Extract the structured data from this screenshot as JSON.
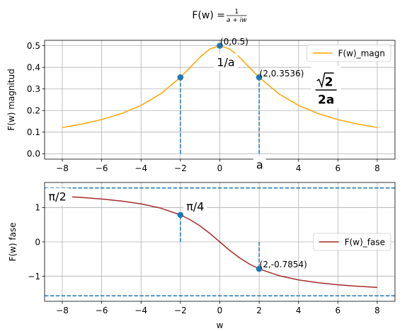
{
  "figure": {
    "title_prefix": "F(w) = ",
    "title_num": "1",
    "title_den": "a + iw"
  },
  "chart_data": [
    {
      "type": "line",
      "ylabel": "F(w) magnitud",
      "xlim": [
        -8.9,
        8.9
      ],
      "ylim": [
        -0.025,
        0.525
      ],
      "xticks": [
        -8,
        -6,
        -4,
        -2,
        0,
        2,
        4,
        6,
        8
      ],
      "xtick_labels": [
        "−8",
        "−6",
        "−4",
        "−2",
        "0",
        "2",
        "4",
        "6",
        "8"
      ],
      "yticks": [
        0.0,
        0.1,
        0.2,
        0.3,
        0.4,
        0.5
      ],
      "ytick_labels": [
        "0.0",
        "0.1",
        "0.2",
        "0.3",
        "0.4",
        "0.5"
      ],
      "grid": true,
      "legend": {
        "position": "top-right",
        "entries": [
          "F(w)_magn"
        ]
      },
      "series": [
        {
          "name": "F(w)_magn",
          "color": "#ffa500",
          "x": [
            -8,
            -7,
            -6,
            -5,
            -4,
            -3,
            -2,
            -1.5,
            -1,
            -0.5,
            0,
            0.5,
            1,
            1.5,
            2,
            3,
            4,
            5,
            6,
            7,
            8
          ],
          "y": [
            0.1213,
            0.1374,
            0.1581,
            0.1857,
            0.2236,
            0.2774,
            0.3536,
            0.4,
            0.4472,
            0.4851,
            0.5,
            0.4851,
            0.4472,
            0.4,
            0.3536,
            0.2774,
            0.2236,
            0.1857,
            0.1581,
            0.1374,
            0.1213
          ]
        }
      ],
      "points": [
        {
          "x": -2,
          "y": 0.3536,
          "color": "#1f77b4"
        },
        {
          "x": 0,
          "y": 0.5,
          "color": "#1f77b4"
        },
        {
          "x": 2,
          "y": 0.3536,
          "color": "#1f77b4"
        }
      ],
      "vlines": [
        {
          "x": -2,
          "y0": 0,
          "y1": 0.3536,
          "color": "#1f77b4"
        },
        {
          "x": 2,
          "y0": 0,
          "y1": 0.3536,
          "color": "#1f77b4"
        }
      ],
      "annotations": [
        {
          "text": "(0,0.5)",
          "x": 0.02,
          "y": 0.505
        },
        {
          "text": "(2,0.3536)",
          "x": 2.02,
          "y": 0.358
        }
      ],
      "symbol_labels": [
        {
          "text": "1/a",
          "x": -0.15,
          "y": 0.405
        },
        {
          "text": "a",
          "x": 1.85,
          "y": -0.07
        }
      ],
      "fraction_label": {
        "num": "2",
        "den": "2a",
        "x": 5.4,
        "y": 0.295
      }
    },
    {
      "type": "line",
      "ylabel": "F(w) fase",
      "xlabel": "w",
      "xlim": [
        -8.9,
        8.9
      ],
      "ylim": [
        -1.73,
        1.73
      ],
      "xticks": [
        -8,
        -6,
        -4,
        -2,
        0,
        2,
        4,
        6,
        8
      ],
      "xtick_labels": [
        "−8",
        "−6",
        "−4",
        "−2",
        "0",
        "2",
        "4",
        "6",
        "8"
      ],
      "yticks": [
        -1,
        0,
        1
      ],
      "ytick_labels": [
        "−1",
        "0",
        "1"
      ],
      "grid": true,
      "legend": {
        "position": "center-right",
        "entries": [
          "F(w)_fase"
        ]
      },
      "series": [
        {
          "name": "F(w)_fase",
          "color": "#a52a2a",
          "x": [
            -7.5,
            -7,
            -6,
            -5,
            -4,
            -3,
            -2,
            -1.5,
            -1,
            -0.5,
            0,
            0.5,
            1,
            1.5,
            2,
            3,
            4,
            5,
            6,
            7,
            8
          ],
          "y": [
            1.3102,
            1.2925,
            1.249,
            1.1903,
            1.1071,
            0.9828,
            0.7854,
            0.6435,
            0.4636,
            0.245,
            0,
            -0.245,
            -0.4636,
            -0.6435,
            -0.7854,
            -0.9828,
            -1.1071,
            -1.1903,
            -1.249,
            -1.2925,
            -1.3258
          ]
        }
      ],
      "points": [
        {
          "x": -2,
          "y": 0.7854,
          "color": "#1f77b4"
        },
        {
          "x": 2,
          "y": -0.7854,
          "color": "#1f77b4"
        }
      ],
      "vlines": [
        {
          "x": -2,
          "y0": 0,
          "y1": 0.7854,
          "color": "#1f77b4"
        },
        {
          "x": 2,
          "y0": 0,
          "y1": -0.7854,
          "color": "#1f77b4"
        }
      ],
      "hlines": [
        {
          "y": 1.5708,
          "color": "#1f77b4"
        },
        {
          "y": -1.5708,
          "color": "#1f77b4"
        }
      ],
      "annotations": [
        {
          "text": "(2,-0.7854)",
          "x": 2.02,
          "y": -0.74
        }
      ],
      "symbol_labels": [
        {
          "text": "π/2",
          "x": -8.7,
          "y": 1.2
        },
        {
          "text": "π/4",
          "x": -1.7,
          "y": 0.92
        }
      ]
    }
  ]
}
